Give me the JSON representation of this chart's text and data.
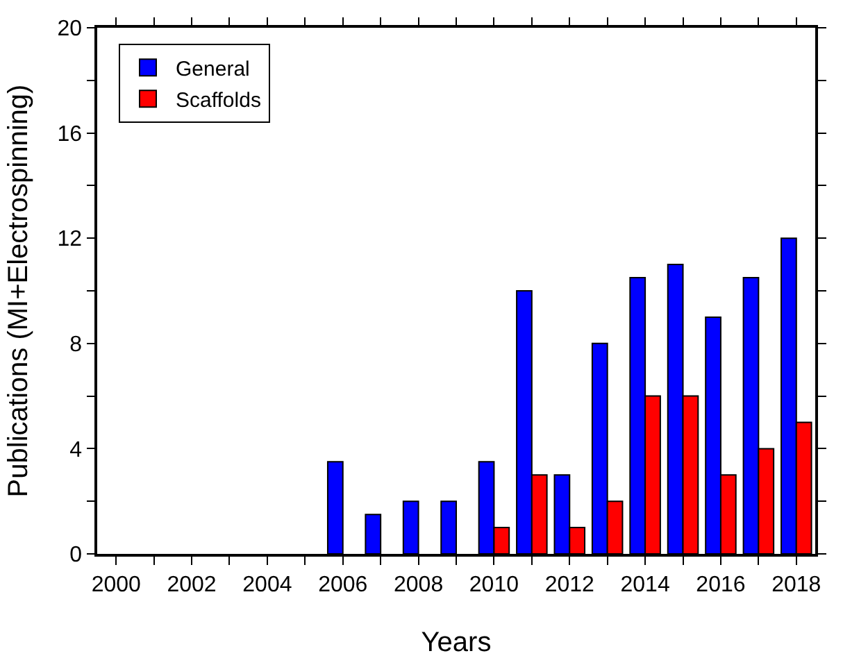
{
  "chart_data": {
    "type": "bar",
    "xlabel": "Years",
    "ylabel": "Publications (MI+Electrospinning)",
    "x": [
      2006,
      2007,
      2008,
      2009,
      2010,
      2011,
      2012,
      2013,
      2014,
      2015,
      2016,
      2017,
      2018
    ],
    "series": [
      {
        "name": "General",
        "color": "#0000ff",
        "values": [
          3.5,
          1.5,
          2,
          2,
          3.5,
          10,
          3,
          8,
          10.5,
          11,
          9,
          10.5,
          12
        ]
      },
      {
        "name": "Scaffolds",
        "color": "#ff0000",
        "values": [
          null,
          null,
          null,
          null,
          1,
          3,
          1,
          2,
          6,
          6,
          3,
          4,
          5
        ]
      }
    ],
    "xlim": [
      1999.5,
      2018.5
    ],
    "xticks": [
      2000,
      {
        "value": 2001,
        "label": null
      },
      2002,
      {
        "value": 2003,
        "label": null
      },
      2004,
      {
        "value": 2005,
        "label": null
      },
      2006,
      {
        "value": 2007,
        "label": null
      },
      2008,
      {
        "value": 2009,
        "label": null
      },
      2010,
      {
        "value": 2011,
        "label": null
      },
      2012,
      {
        "value": 2013,
        "label": null
      },
      2014,
      {
        "value": 2015,
        "label": null
      },
      2016,
      {
        "value": 2017,
        "label": null
      },
      2018
    ],
    "ylim": [
      0,
      20
    ],
    "yticks": [
      0,
      {
        "value": 2,
        "label": null
      },
      4,
      {
        "value": 6,
        "label": null
      },
      8,
      {
        "value": 10,
        "label": null
      },
      12,
      {
        "value": 14,
        "label": null
      },
      16,
      {
        "value": 18,
        "label": null
      },
      20
    ],
    "grid": false,
    "legend": "top left"
  }
}
